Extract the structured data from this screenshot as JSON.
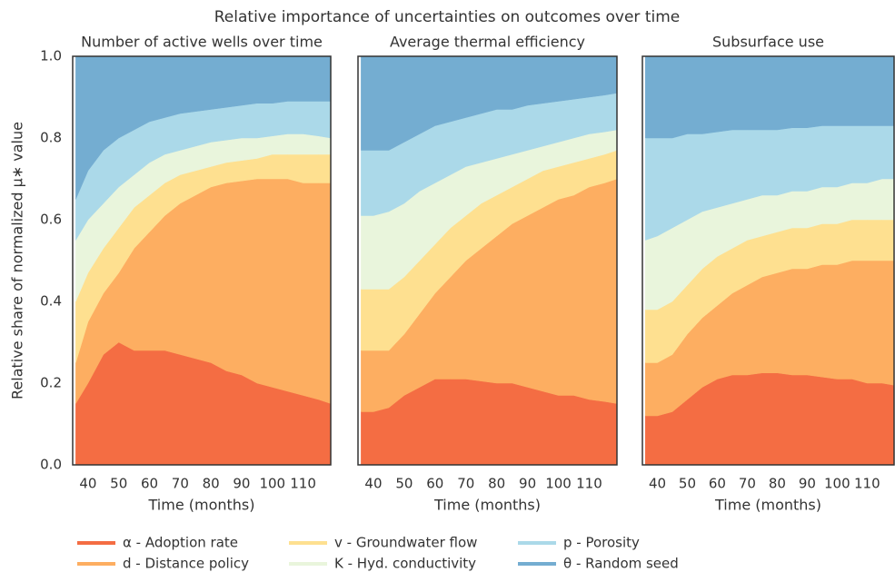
{
  "title": "Relative importance of uncertainties on outcomes over time",
  "chart_data": [
    {
      "type": "stacked-area",
      "title": "Number of active wells over time",
      "xlabel": "Time (months)",
      "ylabel": "Relative share of normalized μ∗ value",
      "x": [
        36,
        40,
        45,
        50,
        55,
        60,
        65,
        70,
        75,
        80,
        85,
        90,
        95,
        100,
        105,
        110,
        115,
        119
      ],
      "xlim": [
        35,
        119
      ],
      "xticks": [
        40,
        50,
        60,
        70,
        80,
        90,
        100,
        110
      ],
      "ylim": [
        0,
        1
      ],
      "yticks": [
        {
          "value": 0,
          "label": "0.0"
        },
        {
          "value": 0.2,
          "label": "0.2"
        },
        {
          "value": 0.4,
          "label": "0.4"
        },
        {
          "value": 0.6,
          "label": "0.6"
        },
        {
          "value": 0.8,
          "label": "0.8"
        },
        {
          "value": 1,
          "label": "1.0"
        }
      ],
      "series": [
        {
          "name": "α - Adoption rate",
          "color": "#f46d43",
          "values": [
            0.15,
            0.2,
            0.27,
            0.3,
            0.28,
            0.28,
            0.28,
            0.27,
            0.26,
            0.25,
            0.23,
            0.22,
            0.2,
            0.19,
            0.18,
            0.17,
            0.16,
            0.15
          ]
        },
        {
          "name": "d - Distance policy",
          "color": "#fdae61",
          "values": [
            0.1,
            0.15,
            0.15,
            0.17,
            0.25,
            0.29,
            0.33,
            0.37,
            0.4,
            0.43,
            0.46,
            0.475,
            0.5,
            0.51,
            0.52,
            0.52,
            0.53,
            0.54
          ]
        },
        {
          "name": "v - Groundwater flow",
          "color": "#fee090",
          "values": [
            0.15,
            0.12,
            0.11,
            0.11,
            0.1,
            0.09,
            0.08,
            0.07,
            0.06,
            0.05,
            0.05,
            0.05,
            0.05,
            0.06,
            0.06,
            0.07,
            0.07,
            0.07
          ]
        },
        {
          "name": "K - Hyd. conductivity",
          "color": "#e9f5dc",
          "values": [
            0.15,
            0.13,
            0.11,
            0.1,
            0.08,
            0.08,
            0.07,
            0.06,
            0.06,
            0.06,
            0.055,
            0.055,
            0.05,
            0.045,
            0.05,
            0.05,
            0.045,
            0.04
          ]
        },
        {
          "name": "p - Porosity",
          "color": "#abd9e9",
          "values": [
            0.1,
            0.12,
            0.13,
            0.12,
            0.11,
            0.1,
            0.09,
            0.09,
            0.085,
            0.08,
            0.08,
            0.08,
            0.085,
            0.08,
            0.08,
            0.08,
            0.085,
            0.09
          ]
        },
        {
          "name": "θ - Random seed",
          "color": "#74add1",
          "values": [
            0.35,
            0.28,
            0.23,
            0.2,
            0.18,
            0.16,
            0.15,
            0.14,
            0.135,
            0.13,
            0.125,
            0.12,
            0.115,
            0.115,
            0.11,
            0.11,
            0.11,
            0.11
          ]
        }
      ]
    },
    {
      "type": "stacked-area",
      "title": "Average thermal efficiency",
      "xlabel": "Time (months)",
      "x": [
        36,
        40,
        45,
        50,
        55,
        60,
        65,
        70,
        75,
        80,
        85,
        90,
        95,
        100,
        105,
        110,
        115,
        119
      ],
      "xlim": [
        35,
        119
      ],
      "xticks": [
        40,
        50,
        60,
        70,
        80,
        90,
        100,
        110
      ],
      "ylim": [
        0,
        1
      ],
      "series": [
        {
          "color": "#f46d43",
          "values": [
            0.13,
            0.13,
            0.14,
            0.17,
            0.19,
            0.21,
            0.21,
            0.21,
            0.205,
            0.2,
            0.2,
            0.19,
            0.18,
            0.17,
            0.17,
            0.16,
            0.155,
            0.15
          ]
        },
        {
          "color": "#fdae61",
          "values": [
            0.15,
            0.15,
            0.14,
            0.15,
            0.18,
            0.21,
            0.25,
            0.29,
            0.325,
            0.36,
            0.39,
            0.42,
            0.45,
            0.48,
            0.49,
            0.52,
            0.535,
            0.55
          ]
        },
        {
          "color": "#fee090",
          "values": [
            0.15,
            0.15,
            0.15,
            0.14,
            0.13,
            0.12,
            0.12,
            0.11,
            0.11,
            0.1,
            0.09,
            0.09,
            0.09,
            0.08,
            0.08,
            0.07,
            0.07,
            0.07
          ]
        },
        {
          "color": "#e9f5dc",
          "values": [
            0.18,
            0.18,
            0.19,
            0.18,
            0.17,
            0.15,
            0.13,
            0.12,
            0.1,
            0.09,
            0.08,
            0.07,
            0.06,
            0.06,
            0.06,
            0.06,
            0.055,
            0.05
          ]
        },
        {
          "color": "#abd9e9",
          "values": [
            0.16,
            0.16,
            0.15,
            0.15,
            0.14,
            0.14,
            0.13,
            0.12,
            0.12,
            0.12,
            0.11,
            0.11,
            0.105,
            0.1,
            0.095,
            0.09,
            0.09,
            0.09
          ]
        },
        {
          "color": "#74add1",
          "values": [
            0.23,
            0.23,
            0.23,
            0.21,
            0.19,
            0.17,
            0.16,
            0.15,
            0.14,
            0.13,
            0.13,
            0.12,
            0.115,
            0.11,
            0.105,
            0.1,
            0.095,
            0.09
          ]
        }
      ]
    },
    {
      "type": "stacked-area",
      "title": "Subsurface use",
      "xlabel": "Time (months)",
      "x": [
        36,
        40,
        45,
        50,
        55,
        60,
        65,
        70,
        75,
        80,
        85,
        90,
        95,
        100,
        105,
        110,
        115,
        119
      ],
      "xlim": [
        35,
        119
      ],
      "xticks": [
        40,
        50,
        60,
        70,
        80,
        90,
        100,
        110
      ],
      "ylim": [
        0,
        1
      ],
      "series": [
        {
          "color": "#f46d43",
          "values": [
            0.12,
            0.12,
            0.13,
            0.16,
            0.19,
            0.21,
            0.22,
            0.22,
            0.225,
            0.225,
            0.22,
            0.22,
            0.215,
            0.21,
            0.21,
            0.2,
            0.2,
            0.195
          ]
        },
        {
          "color": "#fdae61",
          "values": [
            0.13,
            0.13,
            0.14,
            0.16,
            0.17,
            0.18,
            0.2,
            0.22,
            0.235,
            0.245,
            0.26,
            0.26,
            0.275,
            0.28,
            0.29,
            0.3,
            0.3,
            0.305
          ]
        },
        {
          "color": "#fee090",
          "values": [
            0.13,
            0.13,
            0.13,
            0.12,
            0.12,
            0.12,
            0.11,
            0.11,
            0.1,
            0.1,
            0.1,
            0.1,
            0.1,
            0.1,
            0.1,
            0.1,
            0.1,
            0.1
          ]
        },
        {
          "color": "#e9f5dc",
          "values": [
            0.17,
            0.18,
            0.18,
            0.16,
            0.14,
            0.12,
            0.11,
            0.1,
            0.1,
            0.09,
            0.09,
            0.09,
            0.09,
            0.09,
            0.09,
            0.09,
            0.1,
            0.1
          ]
        },
        {
          "color": "#abd9e9",
          "values": [
            0.25,
            0.24,
            0.22,
            0.21,
            0.19,
            0.185,
            0.18,
            0.17,
            0.16,
            0.16,
            0.155,
            0.155,
            0.15,
            0.15,
            0.14,
            0.14,
            0.13,
            0.13
          ]
        },
        {
          "color": "#74add1",
          "values": [
            0.2,
            0.2,
            0.2,
            0.19,
            0.19,
            0.185,
            0.18,
            0.18,
            0.18,
            0.18,
            0.175,
            0.175,
            0.17,
            0.17,
            0.17,
            0.17,
            0.17,
            0.17
          ]
        }
      ]
    }
  ]
}
